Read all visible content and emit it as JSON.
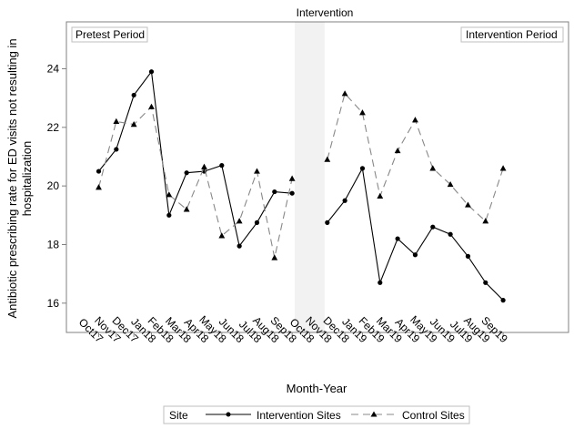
{
  "chart_data": {
    "type": "line",
    "title": "Intervention",
    "xlabel": "Month-Year",
    "ylabel_lines": [
      "Antibiotic prescribing rate for ED visits not resulting in",
      "hospitalization"
    ],
    "categories": [
      "Oct17",
      "Nov17",
      "Dec17",
      "Jan18",
      "Feb18",
      "Mar18",
      "Apr18",
      "May18",
      "Jun18",
      "Jul18",
      "Aug18",
      "Sep18",
      "Oct18",
      "Nov18",
      "Dec18",
      "Jan19",
      "Feb19",
      "Mar19",
      "Apr19",
      "May19",
      "Jun19",
      "Jul19",
      "Aug19",
      "Sep19"
    ],
    "ylim": [
      15,
      25.6
    ],
    "yticks": [
      16,
      18,
      20,
      22,
      24
    ],
    "intervention_period_category": "Oct18",
    "intervention_band_color": "#f2f2f2",
    "annotations": {
      "left": "Pretest Period",
      "right": "Intervention Period"
    },
    "legend": {
      "title": "Site",
      "position": "bottom"
    },
    "series": [
      {
        "name": "Intervention Sites",
        "style": "solid",
        "marker": "circle",
        "color": "#000000",
        "values": [
          20.5,
          21.25,
          23.1,
          23.9,
          19.0,
          20.45,
          20.5,
          20.7,
          17.95,
          18.75,
          19.8,
          19.75,
          null,
          18.75,
          19.5,
          20.6,
          16.7,
          18.2,
          17.65,
          18.6,
          18.35,
          17.6,
          16.7,
          16.1
        ]
      },
      {
        "name": "Control Sites",
        "style": "dashed",
        "marker": "triangle",
        "color": "#888888",
        "values": [
          19.95,
          22.2,
          22.1,
          22.7,
          19.7,
          19.2,
          20.65,
          18.3,
          18.8,
          20.5,
          17.55,
          20.25,
          null,
          20.9,
          23.15,
          22.5,
          19.65,
          21.2,
          22.25,
          20.6,
          20.05,
          19.35,
          18.8,
          20.6
        ]
      }
    ]
  }
}
